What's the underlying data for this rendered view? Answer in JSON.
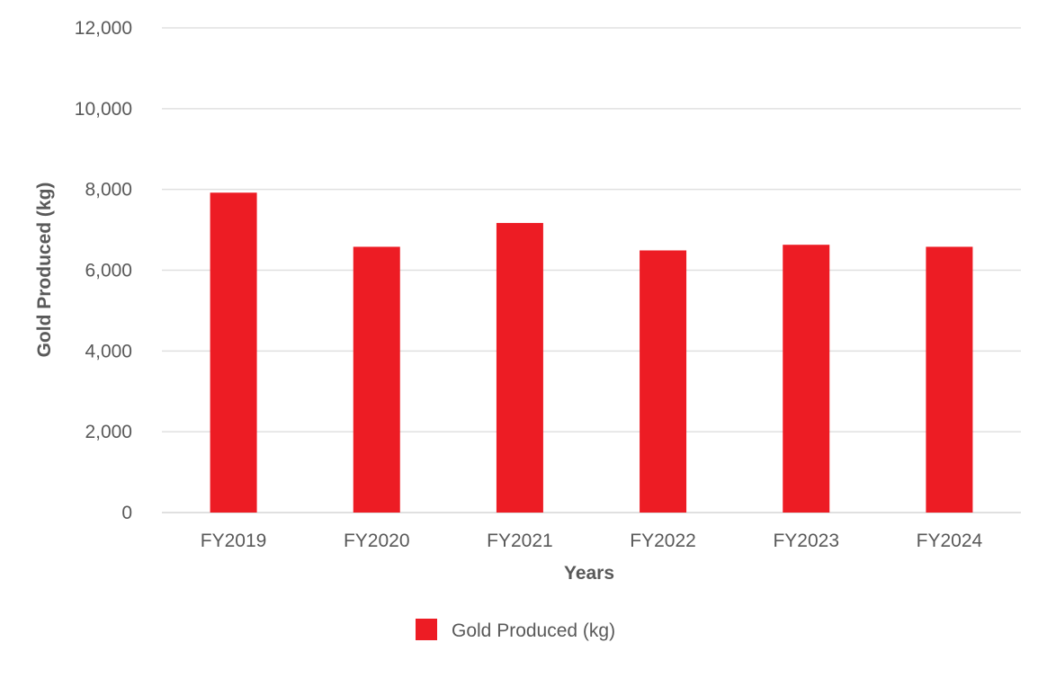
{
  "chart_data": {
    "type": "bar",
    "title": "",
    "xlabel": "Years",
    "ylabel": "Gold Produced (kg)",
    "categories": [
      "FY2019",
      "FY2020",
      "FY2021",
      "FY2022",
      "FY2023",
      "FY2024"
    ],
    "series": [
      {
        "name": "Gold Produced (kg)",
        "values": [
          7920,
          6580,
          7170,
          6490,
          6630,
          6580
        ],
        "color": "#ED1C24"
      }
    ],
    "ylim": [
      0,
      12000
    ],
    "yticks": [
      0,
      2000,
      4000,
      6000,
      8000,
      10000,
      12000
    ],
    "ytick_labels": [
      "0",
      "2,000",
      "4,000",
      "6,000",
      "8,000",
      "10,000",
      "12,000"
    ],
    "grid": true,
    "grid_color": "#E0E0E0",
    "text_color": "#595959",
    "legend_position": "bottom"
  }
}
